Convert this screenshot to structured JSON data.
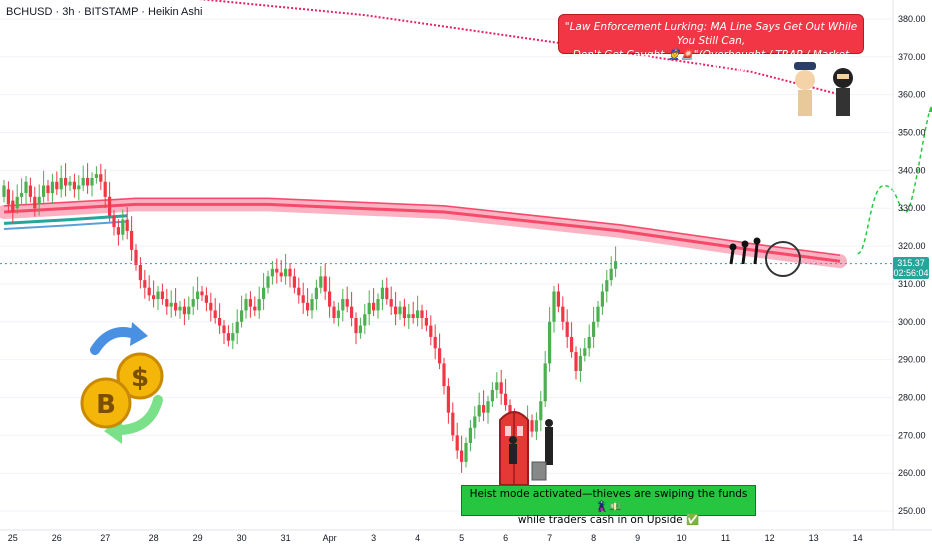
{
  "header": {
    "symbol_line": "BCHUSD · 3h · BITSTAMP · Heikin Ashi"
  },
  "callout": {
    "line1": "\"Law Enforcement Lurking: MA Line Says Get Out While You Still Can,",
    "line2": "Don't Get Caught 👮🚨\"(Overbought / TRAP / Market Pullback / LQ Zone)"
  },
  "heist": {
    "line1": "Heist mode activated—thieves are swiping the funds 🦹💵",
    "line2": "while traders cash in on Upside ✅"
  },
  "price_badge": {
    "price": "315.37",
    "countdown": "02:56:04"
  },
  "colors": {
    "bull": "#26a69a",
    "bull_candle": "#4caf50",
    "bear": "#f23645",
    "ma_red": "#f7496a",
    "ma_band": "#fbb3c3",
    "ma_teal": "#26a69a",
    "ma_blue": "#5aa0d8",
    "dotted_ma": "#e91e63",
    "forecast": "#27c93f"
  },
  "chart_data": {
    "type": "candlestick",
    "symbol": "BCHUSD",
    "interval": "3h",
    "exchange": "BITSTAMP",
    "style": "Heikin Ashi",
    "y_axis": {
      "min": 245,
      "max": 385,
      "ticks": [
        250,
        260,
        270,
        280,
        290,
        300,
        310,
        320,
        330,
        340,
        350,
        360,
        370,
        380
      ]
    },
    "x_axis": {
      "labels": [
        "25",
        "26",
        "27",
        "28",
        "29",
        "30",
        "31",
        "Apr",
        "3",
        "4",
        "5",
        "6",
        "7",
        "8",
        "9",
        "10",
        "11",
        "12",
        "13",
        "14"
      ],
      "label_slots": [
        2,
        12,
        23,
        34,
        44,
        54,
        64,
        74,
        84,
        94,
        104,
        114,
        124,
        134,
        144,
        154,
        164,
        174,
        184,
        194
      ]
    },
    "last_price": 315.37,
    "candles": [
      {
        "o": 333,
        "c": 336
      },
      {
        "o": 335,
        "c": 331
      },
      {
        "o": 332,
        "c": 329
      },
      {
        "o": 330,
        "c": 333
      },
      {
        "o": 333,
        "c": 334
      },
      {
        "o": 334,
        "c": 337
      },
      {
        "o": 336,
        "c": 333
      },
      {
        "o": 333,
        "c": 330
      },
      {
        "o": 331,
        "c": 333
      },
      {
        "o": 333,
        "c": 336
      },
      {
        "o": 336,
        "c": 334
      },
      {
        "o": 334,
        "c": 337
      },
      {
        "o": 337,
        "c": 335
      },
      {
        "o": 335,
        "c": 338
      },
      {
        "o": 338,
        "c": 336
      },
      {
        "o": 336,
        "c": 337
      },
      {
        "o": 337,
        "c": 335
      },
      {
        "o": 335,
        "c": 336
      },
      {
        "o": 336,
        "c": 338
      },
      {
        "o": 338,
        "c": 336
      },
      {
        "o": 336,
        "c": 338
      },
      {
        "o": 338,
        "c": 339
      },
      {
        "o": 339,
        "c": 337
      },
      {
        "o": 337,
        "c": 333
      },
      {
        "o": 333,
        "c": 328
      },
      {
        "o": 328,
        "c": 325
      },
      {
        "o": 325,
        "c": 323
      },
      {
        "o": 323,
        "c": 327
      },
      {
        "o": 327,
        "c": 324
      },
      {
        "o": 324,
        "c": 319
      },
      {
        "o": 319,
        "c": 315
      },
      {
        "o": 315,
        "c": 311
      },
      {
        "o": 311,
        "c": 309
      },
      {
        "o": 309,
        "c": 307
      },
      {
        "o": 307,
        "c": 306
      },
      {
        "o": 306,
        "c": 308
      },
      {
        "o": 308,
        "c": 306
      },
      {
        "o": 306,
        "c": 304
      },
      {
        "o": 304,
        "c": 305
      },
      {
        "o": 305,
        "c": 303
      },
      {
        "o": 303,
        "c": 304
      },
      {
        "o": 304,
        "c": 302
      },
      {
        "o": 302,
        "c": 304
      },
      {
        "o": 304,
        "c": 306
      },
      {
        "o": 306,
        "c": 308
      },
      {
        "o": 308,
        "c": 307
      },
      {
        "o": 307,
        "c": 305
      },
      {
        "o": 305,
        "c": 303
      },
      {
        "o": 303,
        "c": 301
      },
      {
        "o": 301,
        "c": 299
      },
      {
        "o": 299,
        "c": 297
      },
      {
        "o": 297,
        "c": 295
      },
      {
        "o": 295,
        "c": 297
      },
      {
        "o": 297,
        "c": 300
      },
      {
        "o": 300,
        "c": 303
      },
      {
        "o": 303,
        "c": 306
      },
      {
        "o": 306,
        "c": 304
      },
      {
        "o": 304,
        "c": 303
      },
      {
        "o": 303,
        "c": 306
      },
      {
        "o": 306,
        "c": 309
      },
      {
        "o": 309,
        "c": 312
      },
      {
        "o": 312,
        "c": 314
      },
      {
        "o": 314,
        "c": 313
      },
      {
        "o": 313,
        "c": 312
      },
      {
        "o": 312,
        "c": 314
      },
      {
        "o": 314,
        "c": 312
      },
      {
        "o": 312,
        "c": 309
      },
      {
        "o": 309,
        "c": 307
      },
      {
        "o": 307,
        "c": 305
      },
      {
        "o": 305,
        "c": 303
      },
      {
        "o": 303,
        "c": 306
      },
      {
        "o": 306,
        "c": 309
      },
      {
        "o": 309,
        "c": 312
      },
      {
        "o": 312,
        "c": 308
      },
      {
        "o": 308,
        "c": 304
      },
      {
        "o": 304,
        "c": 301
      },
      {
        "o": 301,
        "c": 303
      },
      {
        "o": 303,
        "c": 306
      },
      {
        "o": 306,
        "c": 304
      },
      {
        "o": 304,
        "c": 301
      },
      {
        "o": 301,
        "c": 297
      },
      {
        "o": 297,
        "c": 299
      },
      {
        "o": 299,
        "c": 302
      },
      {
        "o": 302,
        "c": 305
      },
      {
        "o": 305,
        "c": 303
      },
      {
        "o": 303,
        "c": 306
      },
      {
        "o": 306,
        "c": 309
      },
      {
        "o": 309,
        "c": 306
      },
      {
        "o": 306,
        "c": 304
      },
      {
        "o": 304,
        "c": 302
      },
      {
        "o": 302,
        "c": 304
      },
      {
        "o": 304,
        "c": 301
      },
      {
        "o": 301,
        "c": 302
      },
      {
        "o": 302,
        "c": 301
      },
      {
        "o": 301,
        "c": 303
      },
      {
        "o": 303,
        "c": 301
      },
      {
        "o": 301,
        "c": 299
      },
      {
        "o": 299,
        "c": 296
      },
      {
        "o": 296,
        "c": 293
      },
      {
        "o": 293,
        "c": 289
      },
      {
        "o": 289,
        "c": 283
      },
      {
        "o": 283,
        "c": 276
      },
      {
        "o": 276,
        "c": 270
      },
      {
        "o": 270,
        "c": 266
      },
      {
        "o": 266,
        "c": 263
      },
      {
        "o": 263,
        "c": 268
      },
      {
        "o": 268,
        "c": 272
      },
      {
        "o": 272,
        "c": 275
      },
      {
        "o": 275,
        "c": 278
      },
      {
        "o": 278,
        "c": 276
      },
      {
        "o": 276,
        "c": 279
      },
      {
        "o": 279,
        "c": 282
      },
      {
        "o": 282,
        "c": 284
      },
      {
        "o": 284,
        "c": 281
      },
      {
        "o": 281,
        "c": 278
      },
      {
        "o": 278,
        "c": 275
      },
      {
        "o": 275,
        "c": 272
      },
      {
        "o": 272,
        "c": 268
      },
      {
        "o": 268,
        "c": 271
      },
      {
        "o": 271,
        "c": 274
      },
      {
        "o": 274,
        "c": 271
      },
      {
        "o": 271,
        "c": 274
      },
      {
        "o": 274,
        "c": 279
      },
      {
        "o": 279,
        "c": 289
      },
      {
        "o": 289,
        "c": 300
      },
      {
        "o": 300,
        "c": 308
      },
      {
        "o": 308,
        "c": 304
      },
      {
        "o": 304,
        "c": 300
      },
      {
        "o": 300,
        "c": 296
      },
      {
        "o": 296,
        "c": 292
      },
      {
        "o": 292,
        "c": 287
      },
      {
        "o": 287,
        "c": 291
      },
      {
        "o": 291,
        "c": 293
      },
      {
        "o": 293,
        "c": 296
      },
      {
        "o": 296,
        "c": 300
      },
      {
        "o": 300,
        "c": 304
      },
      {
        "o": 304,
        "c": 308
      },
      {
        "o": 308,
        "c": 311
      },
      {
        "o": 311,
        "c": 314
      },
      {
        "o": 314,
        "c": 316
      }
    ],
    "ma_dotted": [
      {
        "x": 20,
        "y": 388
      },
      {
        "x": 82,
        "y": 381
      },
      {
        "x": 130,
        "y": 373
      },
      {
        "x": 170,
        "y": 366
      },
      {
        "x": 190,
        "y": 360
      }
    ],
    "ma_arc": [
      {
        "x": 0,
        "y": 329
      },
      {
        "x": 30,
        "y": 331
      },
      {
        "x": 60,
        "y": 331
      },
      {
        "x": 100,
        "y": 329
      },
      {
        "x": 140,
        "y": 324
      },
      {
        "x": 170,
        "y": 319
      },
      {
        "x": 190,
        "y": 316
      }
    ],
    "forecast_path": [
      {
        "x": 194,
        "y": 318
      },
      {
        "x": 200,
        "y": 336
      },
      {
        "x": 205,
        "y": 329
      },
      {
        "x": 211,
        "y": 357
      }
    ]
  }
}
